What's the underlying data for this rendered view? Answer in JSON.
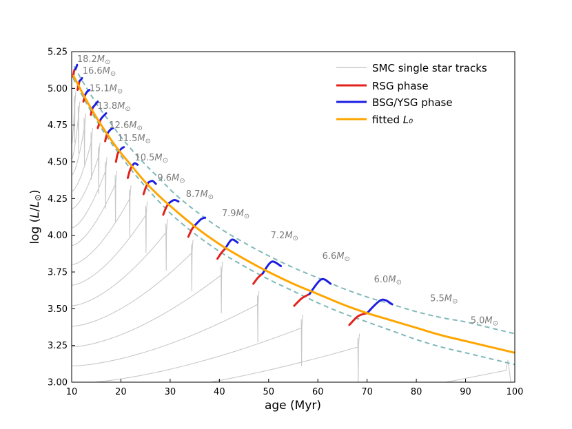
{
  "chart_data": {
    "type": "line",
    "xlabel": "age (Myr)",
    "ylabel": "log (L/L⊙)",
    "xlim": [
      10,
      100
    ],
    "ylim": [
      3.0,
      5.25
    ],
    "xticks": [
      10,
      20,
      30,
      40,
      50,
      60,
      70,
      80,
      90,
      100
    ],
    "yticks": [
      3.0,
      3.25,
      3.5,
      3.75,
      4.0,
      4.25,
      4.5,
      4.75,
      5.0,
      5.25
    ],
    "xtick_labels": [
      "10",
      "20",
      "30",
      "40",
      "50",
      "60",
      "70",
      "80",
      "90",
      "100"
    ],
    "ytick_labels": [
      "3.00",
      "3.25",
      "3.50",
      "3.75",
      "4.00",
      "4.25",
      "4.50",
      "4.75",
      "5.00",
      "5.25"
    ],
    "legend": {
      "position": "top-right",
      "entries": [
        {
          "label": "SMC single star tracks",
          "color": "#c8c8c8"
        },
        {
          "label": "RSG phase",
          "color": "#e3211c"
        },
        {
          "label": "BSG/YSG phase",
          "color": "#1c1ce3"
        },
        {
          "label": "fitted ",
          "label_math": "L₀",
          "color": "#ffa500"
        }
      ]
    },
    "mass_unit": "M⊙",
    "colors": {
      "track": "#c8c8c8",
      "rsg": "#e3211c",
      "bsg": "#1c1ce3",
      "fit": "#ffa500",
      "dashed": "#7fb8b8",
      "mass_label": "#7a7a7a"
    },
    "fitted_L0": {
      "x": [
        10.3,
        12,
        14,
        16,
        18,
        20,
        22,
        25,
        28,
        30,
        35,
        40,
        45,
        50,
        55,
        60,
        65,
        70,
        75,
        80,
        85,
        90,
        95,
        100
      ],
      "y": [
        5.09,
        4.98,
        4.86,
        4.75,
        4.65,
        4.56,
        4.48,
        4.36,
        4.26,
        4.2,
        4.06,
        3.94,
        3.84,
        3.75,
        3.67,
        3.6,
        3.53,
        3.47,
        3.42,
        3.37,
        3.32,
        3.28,
        3.24,
        3.2
      ]
    },
    "dashed_upper": {
      "x": [
        10.5,
        12,
        14,
        16,
        18,
        20,
        22,
        25,
        28,
        31,
        35,
        40,
        45,
        50,
        55,
        60,
        65,
        70,
        75,
        80,
        85,
        90,
        95,
        100
      ],
      "y": [
        5.15,
        5.06,
        4.95,
        4.85,
        4.76,
        4.67,
        4.59,
        4.48,
        4.38,
        4.28,
        4.17,
        4.05,
        3.95,
        3.86,
        3.78,
        3.71,
        3.64,
        3.58,
        3.53,
        3.48,
        3.44,
        3.41,
        3.37,
        3.33
      ]
    },
    "dashed_lower": {
      "x": [
        10.3,
        12,
        14,
        16,
        18,
        20,
        22,
        25,
        28,
        31,
        35,
        40,
        45,
        50,
        55,
        60,
        65,
        70,
        75,
        80,
        85,
        90,
        95,
        100
      ],
      "y": [
        5.07,
        4.96,
        4.84,
        4.73,
        4.63,
        4.54,
        4.45,
        4.33,
        4.22,
        4.12,
        4.01,
        3.89,
        3.79,
        3.7,
        3.62,
        3.54,
        3.47,
        3.41,
        3.35,
        3.29,
        3.24,
        3.2,
        3.16,
        3.12
      ]
    },
    "stars": [
      {
        "mass_label": "18.2",
        "end_age": 10.6,
        "start_logL": 4.62,
        "spike_top": 4.95,
        "rsg": [
          [
            10.3,
            5.08
          ],
          [
            10.5,
            5.12
          ],
          [
            10.7,
            5.13
          ]
        ],
        "bsg": [
          [
            10.7,
            5.13
          ],
          [
            10.9,
            5.14
          ],
          [
            11.1,
            5.16
          ]
        ],
        "label_pos": [
          11.1,
          5.18
        ]
      },
      {
        "mass_label": "16.6",
        "end_age": 11.4,
        "start_logL": 4.52,
        "spike_top": 4.88,
        "rsg": [
          [
            11.2,
            4.99
          ],
          [
            11.4,
            5.02
          ],
          [
            11.6,
            5.05
          ]
        ],
        "bsg": [
          [
            11.6,
            5.05
          ],
          [
            11.9,
            5.06
          ],
          [
            12.1,
            5.07
          ]
        ],
        "label_pos": [
          12.2,
          5.1
        ]
      },
      {
        "mass_label": "15.1",
        "end_age": 12.6,
        "start_logL": 4.41,
        "spike_top": 4.8,
        "rsg": [
          [
            12.4,
            4.91
          ],
          [
            12.6,
            4.94
          ],
          [
            12.8,
            4.96
          ]
        ],
        "bsg": [
          [
            12.8,
            4.96
          ],
          [
            13.2,
            4.98
          ],
          [
            13.6,
            4.99
          ]
        ],
        "label_pos": [
          13.6,
          4.98
        ]
      },
      {
        "mass_label": "13.8",
        "end_age": 14.0,
        "start_logL": 4.3,
        "spike_top": 4.7,
        "rsg": [
          [
            13.9,
            4.82
          ],
          [
            14.1,
            4.85
          ],
          [
            14.3,
            4.87
          ]
        ],
        "bsg": [
          [
            14.3,
            4.87
          ],
          [
            14.8,
            4.89
          ],
          [
            15.3,
            4.91
          ]
        ],
        "label_pos": [
          15.2,
          4.86
        ]
      },
      {
        "mass_label": "12.6",
        "end_age": 15.5,
        "start_logL": 4.18,
        "spike_top": 4.6,
        "rsg": [
          [
            15.3,
            4.73
          ],
          [
            15.6,
            4.76
          ],
          [
            15.9,
            4.79
          ]
        ],
        "bsg": [
          [
            15.9,
            4.79
          ],
          [
            16.4,
            4.81
          ],
          [
            17.0,
            4.83
          ]
        ],
        "label_pos": [
          17.6,
          4.73
        ]
      },
      {
        "mass_label": "11.5",
        "end_age": 16.9,
        "start_logL": 4.05,
        "spike_top": 4.5,
        "rsg": [
          [
            16.8,
            4.64
          ],
          [
            17.1,
            4.68
          ],
          [
            17.4,
            4.7
          ]
        ],
        "bsg": [
          [
            17.4,
            4.7
          ],
          [
            17.9,
            4.72
          ],
          [
            18.4,
            4.73
          ]
        ],
        "label_pos": [
          19.3,
          4.64
        ]
      },
      {
        "mass_label": "10.5",
        "end_age": 18.9,
        "start_logL": 3.93,
        "spike_top": 4.41,
        "rsg": [
          [
            19.0,
            4.5
          ],
          [
            19.3,
            4.55
          ],
          [
            19.6,
            4.57
          ]
        ],
        "bsg": [
          [
            19.6,
            4.57
          ],
          [
            20.1,
            4.59
          ],
          [
            20.6,
            4.6
          ]
        ],
        "label_pos": [
          22.8,
          4.51
        ]
      },
      {
        "mass_label": "9.6",
        "end_age": 21.8,
        "start_logL": 3.8,
        "spike_top": 4.31,
        "rsg": [
          [
            21.4,
            4.39
          ],
          [
            21.8,
            4.44
          ],
          [
            22.2,
            4.47
          ]
        ],
        "bsg": [
          [
            22.2,
            4.47
          ],
          [
            22.8,
            4.49
          ],
          [
            23.4,
            4.48
          ]
        ],
        "label_pos": [
          27.4,
          4.37
        ]
      },
      {
        "mass_label": "8.7",
        "end_age": 25.1,
        "start_logL": 3.66,
        "spike_top": 4.2,
        "rsg": [
          [
            24.6,
            4.28
          ],
          [
            25.1,
            4.33
          ],
          [
            25.6,
            4.36
          ]
        ],
        "bsg": [
          [
            25.6,
            4.36
          ],
          [
            26.4,
            4.37
          ],
          [
            27.1,
            4.35
          ]
        ],
        "label_pos": [
          33.2,
          4.26
        ]
      },
      {
        "mass_label": "7.9",
        "end_age": 29.2,
        "start_logL": 3.52,
        "spike_top": 4.08,
        "rsg": [
          [
            28.6,
            4.14
          ],
          [
            29.2,
            4.19
          ],
          [
            29.8,
            4.22
          ]
        ],
        "bsg": [
          [
            29.8,
            4.22
          ],
          [
            30.8,
            4.24
          ],
          [
            31.7,
            4.23
          ]
        ],
        "label_pos": [
          40.5,
          4.13
        ]
      },
      {
        "mass_label": "7.2",
        "end_age": 34.4,
        "start_logL": 3.38,
        "spike_top": 3.94,
        "rsg": [
          [
            33.7,
            3.99
          ],
          [
            34.4,
            4.04
          ],
          [
            35.1,
            4.07
          ]
        ],
        "bsg": [
          [
            35.1,
            4.07
          ],
          [
            36.3,
            4.11
          ],
          [
            37.1,
            4.12
          ]
        ],
        "label_pos": [
          50.4,
          3.98
        ]
      },
      {
        "mass_label": "6.6",
        "end_age": 40.4,
        "start_logL": 3.24,
        "spike_top": 3.79,
        "rsg": [
          [
            39.6,
            3.84
          ],
          [
            40.4,
            3.88
          ],
          [
            41.2,
            3.91
          ]
        ],
        "bsg": [
          [
            41.2,
            3.91
          ],
          [
            42.5,
            3.97
          ],
          [
            43.7,
            3.95
          ]
        ],
        "label_pos": [
          60.9,
          3.84
        ]
      },
      {
        "mass_label": "6.0",
        "end_age": 47.8,
        "start_logL": 3.11,
        "spike_top": 3.59,
        "rsg": [
          [
            46.9,
            3.67
          ],
          [
            47.8,
            3.71
          ],
          [
            48.8,
            3.74
          ]
        ],
        "bsg": [
          [
            48.8,
            3.74
          ],
          [
            50.6,
            3.82
          ],
          [
            52.5,
            3.79
          ]
        ],
        "label_pos": [
          71.4,
          3.68
        ]
      },
      {
        "mass_label": "5.5",
        "end_age": 56.7,
        "start_logL": 2.99,
        "spike_top": 3.43,
        "rsg": [
          [
            55.2,
            3.52
          ],
          [
            56.7,
            3.57
          ],
          [
            58.3,
            3.6
          ]
        ],
        "bsg": [
          [
            58.3,
            3.6
          ],
          [
            60.7,
            3.7
          ],
          [
            62.6,
            3.67
          ]
        ],
        "label_pos": [
          82.8,
          3.55
        ]
      },
      {
        "mass_label": "5.0",
        "end_age": 68.2,
        "start_logL": 2.89,
        "spike_top": 3.3,
        "rsg": [
          [
            66.4,
            3.39
          ],
          [
            68.2,
            3.45
          ],
          [
            70.0,
            3.47
          ]
        ],
        "bsg": [
          [
            70.0,
            3.47
          ],
          [
            72.9,
            3.56
          ],
          [
            75.1,
            3.53
          ]
        ],
        "label_pos": [
          91.0,
          3.4
        ]
      }
    ]
  }
}
